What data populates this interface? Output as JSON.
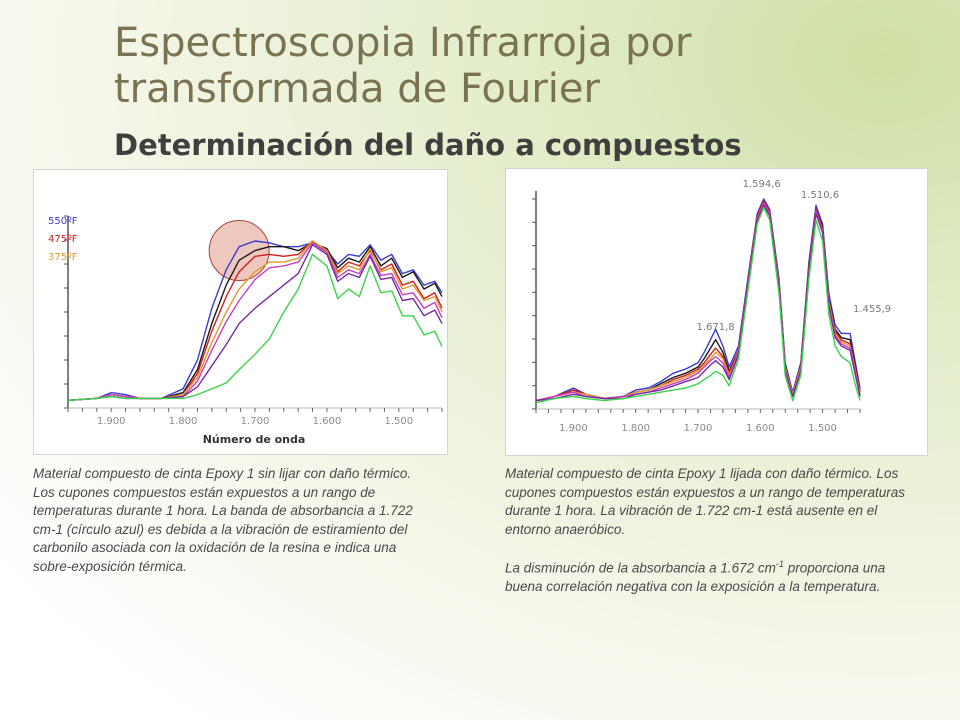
{
  "slide": {
    "title": "Espectroscopia Infrarroja por transformada de Fourier",
    "subtitle": "Determinación del daño a compuestos"
  },
  "left": {
    "legend": [
      {
        "label": "550ºF",
        "color": "#3c3ccd"
      },
      {
        "label": "475ºF",
        "color": "#d11f1f"
      },
      {
        "label": "375ºF",
        "color": "#e09a2a"
      }
    ],
    "xlabel": "Número de onda",
    "caption": "Material compuesto de cinta Epoxy 1 sin lijar con daño térmico. Los cupones compuestos están expuestos a un rango de temperaturas durante 1 hora. La banda de absorbancia a 1.722 cm-1 (círculo azul) es debida a la vibración de estiramiento del carbonilo asociada con la oxidación de la resina e indica una sobre-exposición térmica.",
    "circle_color": "#d9938a"
  },
  "right": {
    "caption1": "Material compuesto de cinta Epoxy 1 lijada con daño térmico. Los cupones compuestos están expuestos a un rango de temperaturas durante 1 hora. La vibración de 1.722 cm-1 está ausente en el entorno anaeróbico.",
    "caption2_pre": "La disminución de la absorbancia a 1.672 cm",
    "caption2_sup": "-1",
    "caption2_post": " proporciona una buena correlación negativa con la exposición a la temperatura."
  },
  "chart_data": [
    {
      "type": "line",
      "title": "",
      "xlabel": "Número de onda",
      "ylabel": "",
      "x_ticks": [
        "1.900",
        "1.800",
        "1.700",
        "1.600",
        "1.500"
      ],
      "xlim": [
        1960,
        1440
      ],
      "ylim": [
        0,
        1
      ],
      "x_reversed": true,
      "grid": false,
      "legend_position": "top-left",
      "series": [
        {
          "name": "550ºF",
          "color": "#3c3ccd",
          "x": [
            1960,
            1920,
            1900,
            1880,
            1860,
            1830,
            1800,
            1780,
            1760,
            1740,
            1722,
            1700,
            1680,
            1660,
            1640,
            1620,
            1600,
            1585,
            1570,
            1555,
            1540,
            1525,
            1510,
            1495,
            1480,
            1465,
            1450,
            1440
          ],
          "values": [
            0.04,
            0.05,
            0.08,
            0.07,
            0.05,
            0.05,
            0.1,
            0.25,
            0.52,
            0.72,
            0.84,
            0.87,
            0.86,
            0.84,
            0.84,
            0.86,
            0.82,
            0.75,
            0.8,
            0.79,
            0.85,
            0.77,
            0.8,
            0.7,
            0.72,
            0.64,
            0.66,
            0.6
          ]
        },
        {
          "color": "#1a1a1a",
          "x": [
            1960,
            1920,
            1900,
            1880,
            1860,
            1830,
            1800,
            1780,
            1760,
            1740,
            1722,
            1700,
            1680,
            1660,
            1640,
            1620,
            1600,
            1585,
            1570,
            1555,
            1540,
            1525,
            1510,
            1495,
            1480,
            1465,
            1450,
            1440
          ],
          "values": [
            0.04,
            0.05,
            0.07,
            0.06,
            0.05,
            0.05,
            0.08,
            0.2,
            0.44,
            0.64,
            0.77,
            0.82,
            0.84,
            0.84,
            0.82,
            0.86,
            0.83,
            0.73,
            0.78,
            0.76,
            0.84,
            0.74,
            0.78,
            0.68,
            0.71,
            0.62,
            0.65,
            0.58
          ]
        },
        {
          "name": "475ºF",
          "color": "#d11f1f",
          "x": [
            1960,
            1920,
            1900,
            1880,
            1860,
            1830,
            1800,
            1780,
            1760,
            1740,
            1722,
            1700,
            1680,
            1660,
            1640,
            1620,
            1600,
            1585,
            1570,
            1555,
            1540,
            1525,
            1510,
            1495,
            1480,
            1465,
            1450,
            1440
          ],
          "values": [
            0.04,
            0.05,
            0.07,
            0.06,
            0.05,
            0.05,
            0.07,
            0.18,
            0.4,
            0.58,
            0.71,
            0.79,
            0.8,
            0.79,
            0.8,
            0.87,
            0.82,
            0.71,
            0.76,
            0.74,
            0.82,
            0.72,
            0.75,
            0.64,
            0.66,
            0.57,
            0.6,
            0.52
          ]
        },
        {
          "name": "375ºF",
          "color": "#e09a2a",
          "x": [
            1960,
            1920,
            1900,
            1880,
            1860,
            1830,
            1800,
            1780,
            1760,
            1740,
            1722,
            1700,
            1680,
            1660,
            1640,
            1620,
            1600,
            1585,
            1570,
            1555,
            1540,
            1525,
            1510,
            1495,
            1480,
            1465,
            1450,
            1440
          ],
          "values": [
            0.04,
            0.05,
            0.07,
            0.06,
            0.05,
            0.05,
            0.07,
            0.16,
            0.34,
            0.5,
            0.62,
            0.71,
            0.76,
            0.76,
            0.78,
            0.87,
            0.82,
            0.7,
            0.74,
            0.72,
            0.83,
            0.71,
            0.73,
            0.62,
            0.64,
            0.56,
            0.58,
            0.5
          ]
        },
        {
          "color": "#c640c6",
          "x": [
            1960,
            1920,
            1900,
            1880,
            1860,
            1830,
            1800,
            1780,
            1760,
            1740,
            1722,
            1700,
            1680,
            1660,
            1640,
            1620,
            1600,
            1585,
            1570,
            1555,
            1540,
            1525,
            1510,
            1495,
            1480,
            1465,
            1450,
            1440
          ],
          "values": [
            0.04,
            0.05,
            0.07,
            0.06,
            0.05,
            0.05,
            0.06,
            0.14,
            0.3,
            0.45,
            0.56,
            0.67,
            0.73,
            0.74,
            0.76,
            0.86,
            0.81,
            0.68,
            0.72,
            0.7,
            0.8,
            0.69,
            0.7,
            0.59,
            0.6,
            0.52,
            0.55,
            0.47
          ]
        },
        {
          "color": "#7a2b9e",
          "x": [
            1960,
            1920,
            1900,
            1880,
            1860,
            1830,
            1800,
            1780,
            1760,
            1740,
            1722,
            1700,
            1680,
            1660,
            1640,
            1620,
            1600,
            1585,
            1570,
            1555,
            1540,
            1525,
            1510,
            1495,
            1480,
            1465,
            1450,
            1440
          ],
          "values": [
            0.04,
            0.05,
            0.06,
            0.05,
            0.05,
            0.05,
            0.06,
            0.11,
            0.22,
            0.33,
            0.44,
            0.52,
            0.58,
            0.64,
            0.7,
            0.85,
            0.8,
            0.66,
            0.7,
            0.68,
            0.79,
            0.67,
            0.68,
            0.56,
            0.57,
            0.48,
            0.51,
            0.44
          ]
        },
        {
          "color": "#3cd44a",
          "x": [
            1960,
            1920,
            1900,
            1880,
            1860,
            1830,
            1800,
            1780,
            1760,
            1740,
            1722,
            1700,
            1680,
            1660,
            1640,
            1620,
            1600,
            1585,
            1570,
            1555,
            1540,
            1525,
            1510,
            1495,
            1480,
            1465,
            1450,
            1440
          ],
          "values": [
            0.04,
            0.05,
            0.06,
            0.05,
            0.05,
            0.05,
            0.05,
            0.07,
            0.1,
            0.13,
            0.2,
            0.28,
            0.36,
            0.5,
            0.62,
            0.8,
            0.74,
            0.57,
            0.62,
            0.58,
            0.74,
            0.6,
            0.61,
            0.48,
            0.48,
            0.38,
            0.4,
            0.32
          ]
        }
      ],
      "circle_marker_at": 1722
    },
    {
      "type": "line",
      "title": "",
      "xlabel": "",
      "ylabel": "",
      "x_ticks": [
        "1.900",
        "1.800",
        "1.700",
        "1.600",
        "1.500"
      ],
      "xlim": [
        1960,
        1440
      ],
      "ylim": [
        0,
        1
      ],
      "x_reversed": true,
      "grid": false,
      "annotations": [
        {
          "text": "1.594,6",
          "x": 1594.6
        },
        {
          "text": "1.510,6",
          "x": 1510.6
        },
        {
          "text": "1.671,8",
          "x": 1671.8
        },
        {
          "text": "1.455,9",
          "x": 1455.9
        }
      ],
      "series": [
        {
          "color": "#3c3ccd",
          "x": [
            1960,
            1930,
            1900,
            1880,
            1850,
            1820,
            1800,
            1780,
            1760,
            1740,
            1720,
            1700,
            1690,
            1680,
            1671.8,
            1660,
            1650,
            1635,
            1620,
            1605,
            1594.6,
            1585,
            1570,
            1560,
            1548,
            1535,
            1522,
            1510.6,
            1500,
            1490,
            1480,
            1470,
            1455.9,
            1448,
            1440
          ],
          "values": [
            0.04,
            0.06,
            0.1,
            0.07,
            0.05,
            0.06,
            0.09,
            0.1,
            0.13,
            0.17,
            0.19,
            0.22,
            0.27,
            0.33,
            0.38,
            0.3,
            0.2,
            0.3,
            0.62,
            0.93,
            1.0,
            0.95,
            0.62,
            0.22,
            0.08,
            0.22,
            0.7,
            0.97,
            0.88,
            0.55,
            0.4,
            0.36,
            0.36,
            0.23,
            0.1
          ]
        },
        {
          "color": "#1a1a1a",
          "x": [
            1960,
            1930,
            1900,
            1880,
            1850,
            1820,
            1800,
            1780,
            1760,
            1740,
            1720,
            1700,
            1690,
            1680,
            1671.8,
            1660,
            1650,
            1635,
            1620,
            1605,
            1594.6,
            1585,
            1570,
            1560,
            1548,
            1535,
            1522,
            1510.6,
            1500,
            1490,
            1480,
            1470,
            1455.9,
            1448,
            1440
          ],
          "values": [
            0.04,
            0.06,
            0.09,
            0.07,
            0.05,
            0.06,
            0.08,
            0.09,
            0.12,
            0.15,
            0.17,
            0.2,
            0.24,
            0.29,
            0.33,
            0.27,
            0.18,
            0.28,
            0.6,
            0.92,
            0.99,
            0.94,
            0.6,
            0.21,
            0.07,
            0.21,
            0.68,
            0.95,
            0.87,
            0.53,
            0.38,
            0.34,
            0.33,
            0.21,
            0.09
          ]
        },
        {
          "color": "#d11f1f",
          "x": [
            1960,
            1930,
            1900,
            1880,
            1850,
            1820,
            1800,
            1780,
            1760,
            1740,
            1720,
            1700,
            1690,
            1680,
            1671.8,
            1660,
            1650,
            1635,
            1620,
            1605,
            1594.6,
            1585,
            1570,
            1560,
            1548,
            1535,
            1522,
            1510.6,
            1500,
            1490,
            1480,
            1470,
            1455.9,
            1448,
            1440
          ],
          "values": [
            0.04,
            0.06,
            0.09,
            0.07,
            0.05,
            0.06,
            0.08,
            0.09,
            0.11,
            0.14,
            0.16,
            0.19,
            0.22,
            0.26,
            0.29,
            0.25,
            0.17,
            0.28,
            0.6,
            0.92,
            0.99,
            0.94,
            0.6,
            0.2,
            0.07,
            0.2,
            0.67,
            0.95,
            0.86,
            0.52,
            0.37,
            0.33,
            0.31,
            0.2,
            0.08
          ]
        },
        {
          "color": "#e09a2a",
          "x": [
            1960,
            1930,
            1900,
            1880,
            1850,
            1820,
            1800,
            1780,
            1760,
            1740,
            1720,
            1700,
            1690,
            1680,
            1671.8,
            1660,
            1650,
            1635,
            1620,
            1605,
            1594.6,
            1585,
            1570,
            1560,
            1548,
            1535,
            1522,
            1510.6,
            1500,
            1490,
            1480,
            1470,
            1455.9,
            1448,
            1440
          ],
          "values": [
            0.04,
            0.06,
            0.08,
            0.07,
            0.05,
            0.06,
            0.08,
            0.09,
            0.11,
            0.13,
            0.15,
            0.18,
            0.21,
            0.24,
            0.27,
            0.24,
            0.16,
            0.27,
            0.59,
            0.91,
            0.98,
            0.93,
            0.59,
            0.2,
            0.07,
            0.2,
            0.66,
            0.94,
            0.85,
            0.51,
            0.36,
            0.32,
            0.3,
            0.19,
            0.08
          ]
        },
        {
          "color": "#c640c6",
          "x": [
            1960,
            1930,
            1900,
            1880,
            1850,
            1820,
            1800,
            1780,
            1760,
            1740,
            1720,
            1700,
            1690,
            1680,
            1671.8,
            1660,
            1650,
            1635,
            1620,
            1605,
            1594.6,
            1585,
            1570,
            1560,
            1548,
            1535,
            1522,
            1510.6,
            1500,
            1490,
            1480,
            1470,
            1455.9,
            1448,
            1440
          ],
          "values": [
            0.04,
            0.06,
            0.08,
            0.06,
            0.05,
            0.06,
            0.07,
            0.08,
            0.1,
            0.12,
            0.14,
            0.17,
            0.2,
            0.23,
            0.25,
            0.22,
            0.15,
            0.27,
            0.59,
            0.91,
            0.98,
            0.93,
            0.59,
            0.19,
            0.06,
            0.19,
            0.66,
            0.94,
            0.85,
            0.5,
            0.35,
            0.31,
            0.29,
            0.18,
            0.07
          ]
        },
        {
          "color": "#7a2b9e",
          "x": [
            1960,
            1930,
            1900,
            1880,
            1850,
            1820,
            1800,
            1780,
            1760,
            1740,
            1720,
            1700,
            1690,
            1680,
            1671.8,
            1660,
            1650,
            1635,
            1620,
            1605,
            1594.6,
            1585,
            1570,
            1560,
            1548,
            1535,
            1522,
            1510.6,
            1500,
            1490,
            1480,
            1470,
            1455.9,
            1448,
            1440
          ],
          "values": [
            0.04,
            0.05,
            0.07,
            0.06,
            0.05,
            0.05,
            0.07,
            0.08,
            0.09,
            0.11,
            0.13,
            0.15,
            0.18,
            0.21,
            0.23,
            0.2,
            0.14,
            0.26,
            0.58,
            0.9,
            0.97,
            0.92,
            0.58,
            0.18,
            0.06,
            0.18,
            0.65,
            0.93,
            0.84,
            0.49,
            0.34,
            0.3,
            0.28,
            0.17,
            0.06
          ]
        },
        {
          "color": "#3cd44a",
          "x": [
            1960,
            1930,
            1900,
            1880,
            1850,
            1820,
            1800,
            1780,
            1760,
            1740,
            1720,
            1700,
            1690,
            1680,
            1671.8,
            1660,
            1650,
            1635,
            1620,
            1605,
            1594.6,
            1585,
            1570,
            1560,
            1548,
            1535,
            1522,
            1510.6,
            1500,
            1490,
            1480,
            1470,
            1455.9,
            1448,
            1440
          ],
          "values": [
            0.03,
            0.05,
            0.06,
            0.05,
            0.04,
            0.05,
            0.06,
            0.07,
            0.08,
            0.09,
            0.1,
            0.12,
            0.14,
            0.16,
            0.18,
            0.16,
            0.11,
            0.24,
            0.56,
            0.88,
            0.96,
            0.9,
            0.55,
            0.16,
            0.04,
            0.16,
            0.62,
            0.9,
            0.8,
            0.45,
            0.3,
            0.25,
            0.22,
            0.12,
            0.04
          ]
        }
      ]
    }
  ]
}
